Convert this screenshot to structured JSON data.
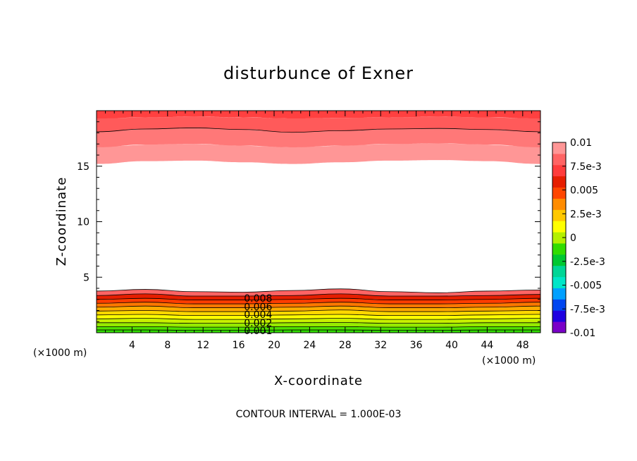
{
  "chart_data": {
    "type": "contour",
    "title": "disturbunce of Exner",
    "xlabel": "X-coordinate",
    "ylabel": "Z-coordinate",
    "x_unit_left": "(×1000 m)",
    "x_unit_right": "(×1000 m)",
    "xlim": [
      0,
      50
    ],
    "ylim": [
      0,
      20
    ],
    "x_ticks": [
      4,
      8,
      12,
      16,
      20,
      24,
      28,
      32,
      36,
      40,
      44,
      48
    ],
    "x_tick_labels": [
      "4",
      "8",
      "12",
      "16",
      "20",
      "24",
      "28",
      "32",
      "36",
      "40",
      "44",
      "48"
    ],
    "y_ticks": [
      5,
      10,
      15
    ],
    "y_tick_labels": [
      "5",
      "10",
      "15"
    ],
    "contour_interval_text": "CONTOUR INTERVAL = 1.000E-03",
    "contour_labels": [
      {
        "text": "0.008",
        "x": 18.2,
        "y": 3.1
      },
      {
        "text": "0.006",
        "x": 18.2,
        "y": 2.35
      },
      {
        "text": "0.004",
        "x": 18.2,
        "y": 1.65
      },
      {
        "text": "0.002",
        "x": 18.2,
        "y": 0.9
      },
      {
        "text": "0.001",
        "x": 18.2,
        "y": 0.2
      }
    ],
    "colorbar": {
      "min": -0.01,
      "max": 0.01,
      "labels": [
        "0.01",
        "7.5e-3",
        "0.005",
        "2.5e-3",
        "0",
        "-2.5e-3",
        "-0.005",
        "-7.5e-3",
        "-0.01"
      ],
      "colors": [
        "#7a00c8",
        "#1e00e0",
        "#0046f0",
        "#00a0ff",
        "#00e6c8",
        "#00d696",
        "#00c832",
        "#32dc00",
        "#b4f000",
        "#ffff00",
        "#ffc800",
        "#ff8c00",
        "#ff4600",
        "#e61e00",
        "#ff3c3c",
        "#ff6464",
        "#ff9696"
      ]
    },
    "bottom_band": {
      "boundaries": [
        {
          "values": [
            0.25,
            0.25,
            0.22,
            0.22,
            0.25,
            0.25,
            0.22,
            0.22,
            0.25,
            0.25
          ]
        },
        {
          "values": [
            0.55,
            0.55,
            0.5,
            0.5,
            0.55,
            0.55,
            0.5,
            0.5,
            0.55,
            0.55
          ]
        },
        {
          "values": [
            0.9,
            0.9,
            0.85,
            0.85,
            0.9,
            0.92,
            0.85,
            0.85,
            0.9,
            0.9
          ]
        },
        {
          "values": [
            1.25,
            1.3,
            1.2,
            1.2,
            1.25,
            1.3,
            1.2,
            1.2,
            1.25,
            1.3
          ]
        },
        {
          "values": [
            1.6,
            1.65,
            1.55,
            1.55,
            1.6,
            1.65,
            1.55,
            1.55,
            1.6,
            1.65
          ]
        },
        {
          "values": [
            1.95,
            2.0,
            1.9,
            1.9,
            1.95,
            2.05,
            1.9,
            1.9,
            1.95,
            2.0
          ]
        },
        {
          "values": [
            2.3,
            2.4,
            2.25,
            2.25,
            2.3,
            2.4,
            2.25,
            2.25,
            2.3,
            2.4
          ]
        },
        {
          "values": [
            2.65,
            2.75,
            2.6,
            2.6,
            2.65,
            2.75,
            2.6,
            2.6,
            2.65,
            2.75
          ]
        },
        {
          "values": [
            3.0,
            3.1,
            2.95,
            2.95,
            3.0,
            3.1,
            2.95,
            2.95,
            3.0,
            3.1
          ]
        },
        {
          "values": [
            3.35,
            3.5,
            3.3,
            3.3,
            3.35,
            3.5,
            3.3,
            3.3,
            3.35,
            3.45
          ]
        },
        {
          "values": [
            3.75,
            3.9,
            3.7,
            3.65,
            3.8,
            3.95,
            3.7,
            3.6,
            3.75,
            3.85
          ]
        }
      ],
      "fill_colors": [
        "#32dc00",
        "#50e000",
        "#96ea00",
        "#c8f000",
        "#ffff00",
        "#ffd700",
        "#ffaa00",
        "#ff7800",
        "#ff3c00",
        "#e61e00",
        "#ff6464"
      ]
    },
    "top_band": {
      "boundaries": [
        {
          "values": [
            15.2,
            15.45,
            15.5,
            15.35,
            15.2,
            15.35,
            15.5,
            15.55,
            15.45,
            15.2
          ]
        },
        {
          "values": [
            16.7,
            16.95,
            17.0,
            16.85,
            16.7,
            16.85,
            17.0,
            17.05,
            16.95,
            16.7
          ]
        },
        {
          "values": [
            18.1,
            18.35,
            18.45,
            18.3,
            18.05,
            18.2,
            18.35,
            18.4,
            18.3,
            18.1
          ]
        },
        {
          "values": [
            19.3,
            19.4,
            19.45,
            19.4,
            19.3,
            19.35,
            19.4,
            19.45,
            19.4,
            19.3
          ]
        }
      ],
      "fill_colors": [
        "#ff9696",
        "#ff7878",
        "#ff5a5a",
        "#ff4040",
        "#ff3030"
      ]
    },
    "x_samples": [
      0,
      5.5,
      11,
      16.5,
      22,
      27.5,
      33,
      38.5,
      44,
      50
    ]
  }
}
